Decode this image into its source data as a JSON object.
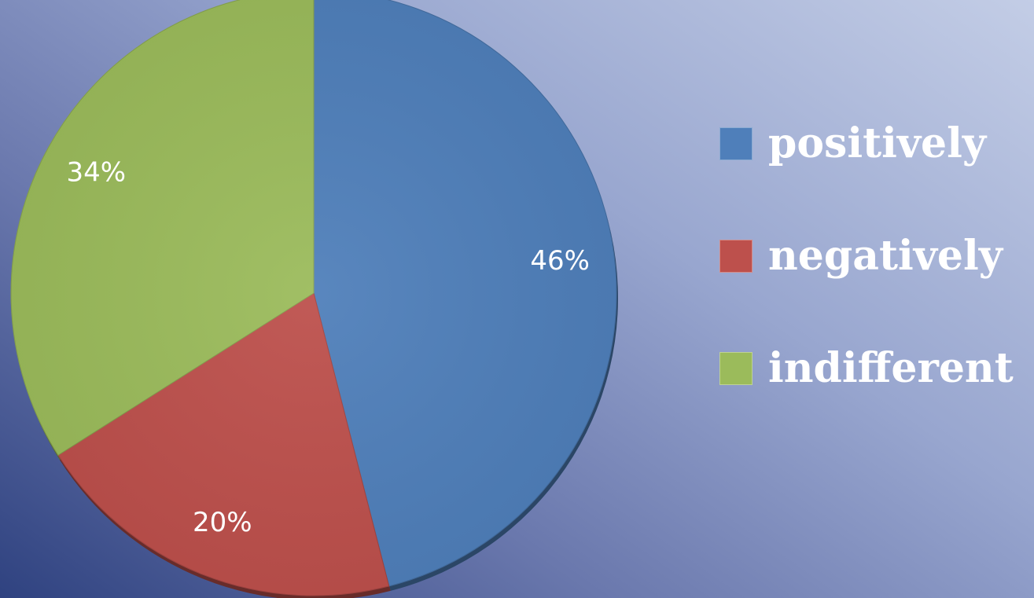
{
  "chart_data": {
    "type": "pie",
    "categories": [
      "positively",
      "negatively",
      "indifferent"
    ],
    "values": [
      46,
      20,
      34
    ],
    "labels": [
      "46%",
      "20%",
      "34%"
    ],
    "colors": [
      "#4f7fba",
      "#bd504c",
      "#9bbb5b"
    ],
    "legend_position": "right",
    "start_angle": "top",
    "direction": "clockwise"
  }
}
